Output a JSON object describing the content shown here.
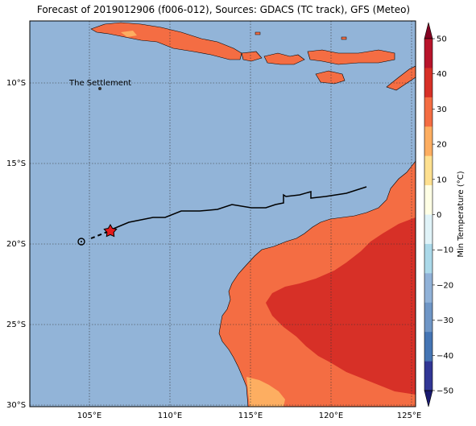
{
  "title": "Forecast of 2019012906 (f006-012), Sources: GDACS (TC track), GFS (Meteo)",
  "place_label": "The Settlement",
  "lat_ticks": [
    "10°S",
    "15°S",
    "20°S",
    "25°S",
    "30°S"
  ],
  "lon_ticks": [
    "105°E",
    "110°E",
    "115°E",
    "120°E",
    "125°E"
  ],
  "colorbar": {
    "label": "Min Temperature (°C)",
    "ticks": [
      "50",
      "40",
      "30",
      "20",
      "10",
      "0",
      "−10",
      "−20",
      "−30",
      "−40",
      "−50"
    ],
    "colors": [
      "#840423",
      "#b8142b",
      "#d73027",
      "#f46d43",
      "#fdae61",
      "#fee090",
      "#ffffe5",
      "#e0f3f8",
      "#abd9e9",
      "#91b2d8",
      "#6f96c6",
      "#4575b4",
      "#313695",
      "#1a1a70"
    ]
  },
  "colors": {
    "ocean": "#92b4d8",
    "land_warm": "#f46d43",
    "land_hot": "#d73027",
    "land_mild": "#fdae61",
    "track": "#000000",
    "storm_marker": "#e41a1c"
  }
}
